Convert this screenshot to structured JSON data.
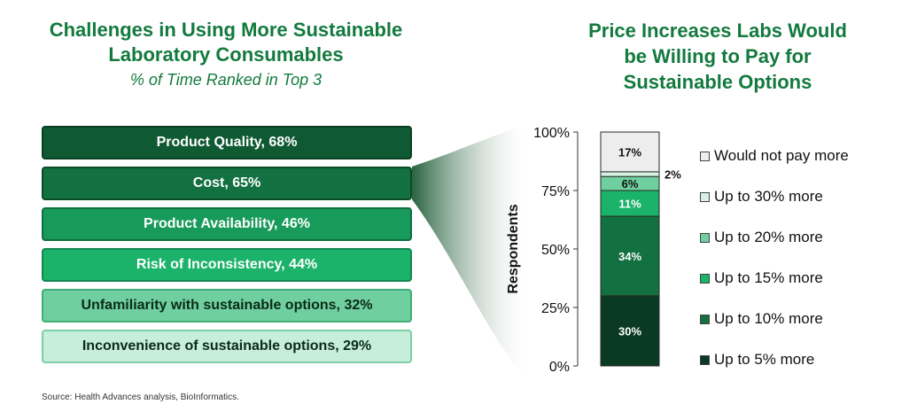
{
  "left": {
    "title_line1": "Challenges in Using More Sustainable",
    "title_line2": "Laboratory Consumables",
    "subtitle": "% of Time Ranked in Top 3"
  },
  "right": {
    "title_line1": "Price Increases Labs Would",
    "title_line2": "be Willing to Pay for",
    "title_line3": "Sustainable Options"
  },
  "chart_data": [
    {
      "type": "bar",
      "orientation": "horizontal",
      "title": "Challenges in Using More Sustainable Laboratory Consumables",
      "subtitle": "% of Time Ranked in Top 3",
      "categories": [
        "Product Quality",
        "Cost",
        "Product Availability",
        "Risk of Inconsistency",
        "Unfamiliarity with sustainable options",
        "Inconvenience of sustainable options"
      ],
      "values": [
        68,
        65,
        46,
        44,
        32,
        29
      ],
      "labels": [
        "Product Quality, 68%",
        "Cost, 65%",
        "Product Availability, 46%",
        "Risk of Inconsistency, 44%",
        "Unfamiliarity with sustainable options, 32%",
        "Inconvenience of sustainable options, 29%"
      ]
    },
    {
      "type": "bar",
      "stacked": true,
      "title": "Price Increases Labs Would be Willing to Pay for Sustainable Options",
      "ylabel": "Respondents",
      "ylim": [
        0,
        100
      ],
      "yticks": [
        "0%",
        "25%",
        "50%",
        "75%",
        "100%"
      ],
      "legend_position": "right",
      "series": [
        {
          "name": "Up to 5% more",
          "value": 30,
          "label": "30%",
          "color": "#0a3a22"
        },
        {
          "name": "Up to 10% more",
          "value": 34,
          "label": "34%",
          "color": "#137040"
        },
        {
          "name": "Up to 15% more",
          "value": 11,
          "label": "11%",
          "color": "#1bb26a"
        },
        {
          "name": "Up to 20% more",
          "value": 6,
          "label": "6%",
          "color": "#6fcf9e"
        },
        {
          "name": "Up to 30% more",
          "value": 2,
          "label": "2%",
          "color": "#d6f2e4"
        },
        {
          "name": "Would not pay more",
          "value": 17,
          "label": "17%",
          "color": "#ededed"
        }
      ]
    }
  ],
  "source": "Source:  Health Advances analysis, BioInformatics."
}
